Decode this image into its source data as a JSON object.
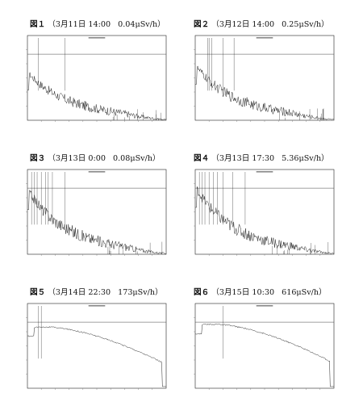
{
  "panels": [
    {
      "fig": "図１",
      "date": "（3月11日",
      "time": "14:00",
      "dose": "0.04μSv/h）",
      "chart_data": {
        "type": "line",
        "shape": "decay",
        "level": 0.42,
        "lines": [
          0.08,
          0.27
        ]
      }
    },
    {
      "fig": "図２",
      "date": "（3月12日",
      "time": "14:00",
      "dose": "0.25μSv/h）",
      "chart_data": {
        "type": "line",
        "shape": "decay",
        "level": 0.5,
        "lines": [
          0.09,
          0.1,
          0.12,
          0.2,
          0.28
        ]
      }
    },
    {
      "fig": "図３",
      "date": "（3月13日",
      "time": "0:00",
      "dose": "0.08μSv/h）",
      "chart_data": {
        "type": "line",
        "shape": "decay",
        "level": 0.62,
        "lines": [
          0.03,
          0.05,
          0.07,
          0.1,
          0.13,
          0.15,
          0.18,
          0.27
        ]
      }
    },
    {
      "fig": "図４",
      "date": "（3月13日",
      "time": "17:30",
      "dose": "5.36μSv/h）",
      "chart_data": {
        "type": "line",
        "shape": "decay",
        "level": 0.65,
        "lines": [
          0.03,
          0.05,
          0.07,
          0.1,
          0.13,
          0.16,
          0.2,
          0.27,
          0.36
        ]
      }
    },
    {
      "fig": "図５",
      "date": "（3月14日",
      "time": "22:30",
      "dose": "173μSv/h）",
      "chart_data": {
        "type": "line",
        "shape": "broad-hump",
        "level": 0.88,
        "lines": [
          0.08,
          0.1
        ]
      }
    },
    {
      "fig": "図６",
      "date": "（3月15日",
      "time": "10:30",
      "dose": "616μSv/h）",
      "chart_data": {
        "type": "line",
        "shape": "broad-hump",
        "level": 0.92,
        "lines": [
          0.2
        ]
      }
    }
  ]
}
